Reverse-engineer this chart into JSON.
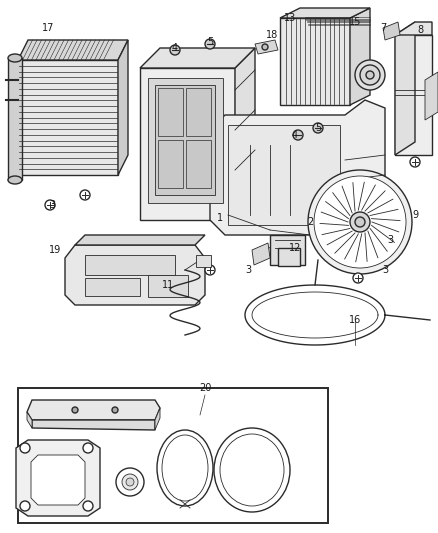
{
  "bg_color": "#ffffff",
  "line_color": "#2a2a2a",
  "figsize": [
    4.38,
    5.33
  ],
  "dpi": 100,
  "labels": [
    [
      "17",
      48,
      28
    ],
    [
      "4",
      175,
      48
    ],
    [
      "5",
      210,
      42
    ],
    [
      "18",
      272,
      35
    ],
    [
      "13",
      290,
      18
    ],
    [
      "15",
      355,
      22
    ],
    [
      "7",
      383,
      28
    ],
    [
      "8",
      420,
      30
    ],
    [
      "4",
      295,
      135
    ],
    [
      "5",
      318,
      128
    ],
    [
      "3",
      52,
      205
    ],
    [
      "1",
      220,
      218
    ],
    [
      "2",
      310,
      222
    ],
    [
      "12",
      295,
      248
    ],
    [
      "9",
      415,
      215
    ],
    [
      "3",
      248,
      270
    ],
    [
      "11",
      168,
      285
    ],
    [
      "3",
      390,
      240
    ],
    [
      "16",
      355,
      320
    ],
    [
      "19",
      55,
      250
    ],
    [
      "20",
      205,
      388
    ],
    [
      "3",
      385,
      270
    ]
  ]
}
